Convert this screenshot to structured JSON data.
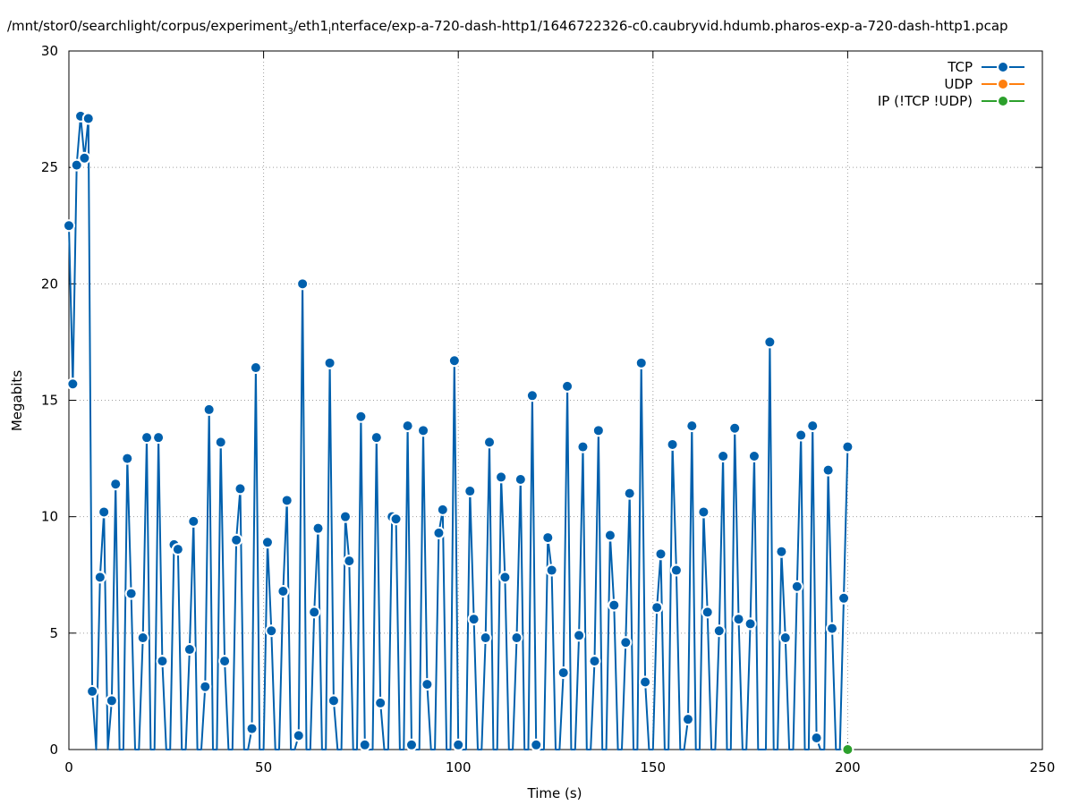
{
  "title": {
    "part1": "/mnt/stor0/searchlight/corpus/experiment",
    "sub1": "3",
    "part2": "/eth1",
    "sub2": "i",
    "part3": "nterface/exp-a-720-dash-http1/1646722326-c0.caubryvid.hdumb.pharos-exp-a-720-dash-http1.pcap"
  },
  "chart_data": {
    "type": "line",
    "xlabel": "Time (s)",
    "ylabel": "Megabits",
    "xlim": [
      0,
      250
    ],
    "ylim": [
      0,
      30
    ],
    "xticks": [
      0,
      50,
      100,
      150,
      200,
      250
    ],
    "yticks": [
      0,
      5,
      10,
      15,
      20,
      25,
      30
    ],
    "grid": true,
    "legend_position": "top-right",
    "colors": {
      "TCP": "#0060ad",
      "UDP": "#ff7f0e",
      "IP": "#2ca02c"
    },
    "series": [
      {
        "name": "TCP",
        "x": [
          0,
          1,
          2,
          3,
          4,
          5,
          6,
          7,
          8,
          9,
          10,
          11,
          12,
          13,
          14,
          15,
          16,
          17,
          18,
          19,
          20,
          21,
          22,
          23,
          24,
          25,
          26,
          27,
          28,
          29,
          30,
          31,
          32,
          33,
          34,
          35,
          36,
          37,
          38,
          39,
          40,
          41,
          42,
          43,
          44,
          45,
          46,
          47,
          48,
          49,
          50,
          51,
          52,
          53,
          54,
          55,
          56,
          57,
          58,
          59,
          60,
          61,
          62,
          63,
          64,
          65,
          66,
          67,
          68,
          69,
          70,
          71,
          72,
          73,
          74,
          75,
          76,
          77,
          78,
          79,
          80,
          81,
          82,
          83,
          84,
          85,
          86,
          87,
          88,
          89,
          90,
          91,
          92,
          93,
          94,
          95,
          96,
          97,
          98,
          99,
          100,
          101,
          102,
          103,
          104,
          105,
          106,
          107,
          108,
          109,
          110,
          111,
          112,
          113,
          114,
          115,
          116,
          117,
          118,
          119,
          120,
          121,
          122,
          123,
          124,
          125,
          126,
          127,
          128,
          129,
          130,
          131,
          132,
          133,
          134,
          135,
          136,
          137,
          138,
          139,
          140,
          141,
          142,
          143,
          144,
          145,
          146,
          147,
          148,
          149,
          150,
          151,
          152,
          153,
          154,
          155,
          156,
          157,
          158,
          159,
          160,
          161,
          162,
          163,
          164,
          165,
          166,
          167,
          168,
          169,
          170,
          171,
          172,
          173,
          174,
          175,
          176,
          177,
          178,
          179,
          180,
          181,
          182,
          183,
          184,
          185,
          186,
          187,
          188,
          189,
          190,
          191,
          192,
          193,
          194,
          195,
          196,
          197,
          198,
          199,
          200
        ],
        "y": [
          22.5,
          15.7,
          25.1,
          27.2,
          25.4,
          27.1,
          2.5,
          0,
          7.4,
          10.2,
          0,
          2.1,
          11.4,
          0,
          0,
          12.5,
          6.7,
          0,
          0,
          4.8,
          13.4,
          0,
          0,
          13.4,
          3.8,
          0,
          0,
          8.8,
          8.6,
          0,
          0,
          4.3,
          9.8,
          0,
          0,
          2.7,
          14.6,
          0,
          0,
          13.2,
          3.8,
          0,
          0,
          9.0,
          11.2,
          0,
          0,
          0.9,
          16.4,
          0,
          0,
          8.9,
          5.1,
          0,
          0,
          6.8,
          10.7,
          0,
          0,
          0.6,
          20.0,
          0,
          0,
          5.9,
          9.5,
          0,
          0,
          16.6,
          2.1,
          0,
          0,
          10.0,
          8.1,
          0,
          0,
          14.3,
          0.2,
          0,
          0,
          13.4,
          2.0,
          0,
          0,
          10.0,
          9.9,
          0,
          0,
          13.9,
          0.2,
          0,
          0,
          13.7,
          2.8,
          0,
          0,
          9.3,
          10.3,
          0,
          0,
          16.7,
          0.2,
          0,
          0,
          11.1,
          5.6,
          0,
          0,
          4.8,
          13.2,
          0,
          0,
          11.7,
          7.4,
          0,
          0,
          4.8,
          11.6,
          0,
          0,
          15.2,
          0.2,
          0,
          0,
          9.1,
          7.7,
          0,
          0,
          3.3,
          15.6,
          0,
          0,
          4.9,
          13.0,
          0,
          0,
          3.8,
          13.7,
          0,
          0,
          9.2,
          6.2,
          0,
          0,
          4.6,
          11.0,
          0,
          0,
          16.6,
          2.9,
          0,
          0,
          6.1,
          8.4,
          0,
          0,
          13.1,
          7.7,
          0,
          0,
          1.3,
          13.9,
          0,
          0,
          10.2,
          5.9,
          0,
          0,
          5.1,
          12.6,
          0,
          0,
          13.8,
          5.6,
          0,
          0,
          5.4,
          12.6,
          0,
          0,
          0,
          17.5,
          0,
          0,
          8.5,
          4.8,
          0,
          0,
          7.0,
          13.5,
          0,
          0,
          13.9,
          0.5,
          0,
          0,
          12.0,
          5.2,
          0,
          0,
          6.5,
          13.0
        ]
      },
      {
        "name": "UDP",
        "x": [],
        "y": []
      },
      {
        "name": "IP (!TCP  !UDP)",
        "x": [
          200
        ],
        "y": [
          0
        ]
      }
    ]
  }
}
